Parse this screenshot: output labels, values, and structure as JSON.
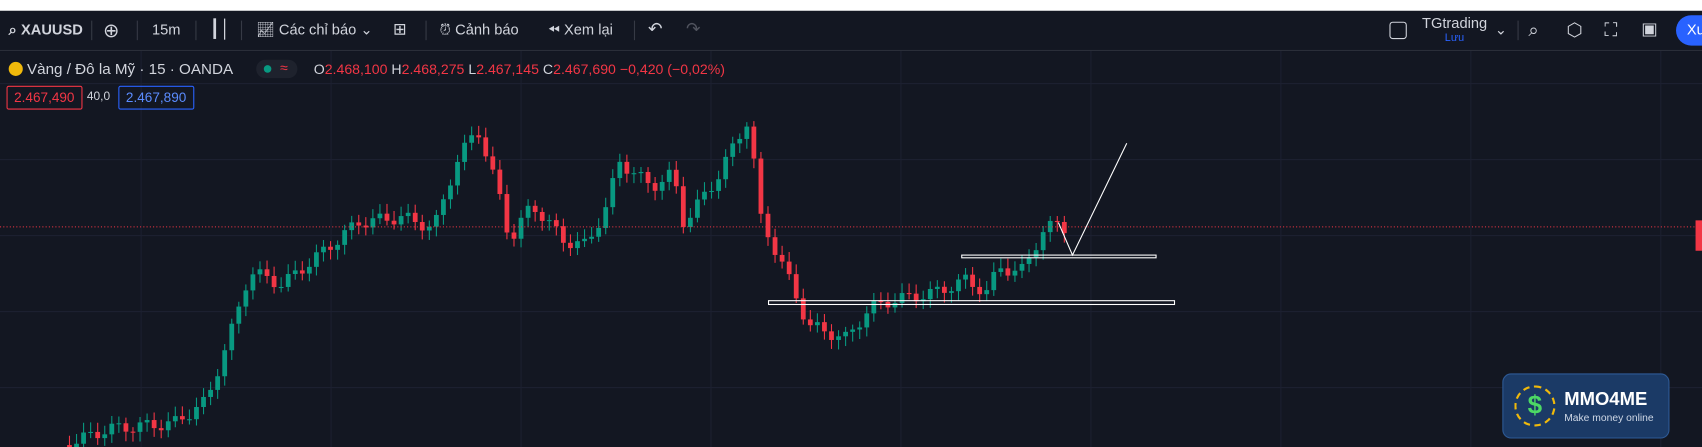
{
  "toolbar": {
    "symbol": "XAUUSD",
    "interval": "15m",
    "indicators": "Các chỉ báo",
    "alerts": "Cảnh báo",
    "replay": "Xem lại",
    "layout_name": "TGtrading",
    "save": "Lưu",
    "publish": "Xu"
  },
  "legend": {
    "title": "Vàng / Đô la Mỹ · 15 · OANDA",
    "open_label": "O",
    "open": "2.468,100",
    "high_label": "H",
    "high": "2.468,275",
    "low_label": "L",
    "low": "2.467,145",
    "close_label": "C",
    "close": "2.467,690",
    "change": "−0,420 (−0,02%)"
  },
  "quote": {
    "sell": "2.467,490",
    "spread": "40,0",
    "buy": "2.467,890"
  },
  "logo": {
    "name": "MMO4ME",
    "tagline": "Make money online"
  }
}
